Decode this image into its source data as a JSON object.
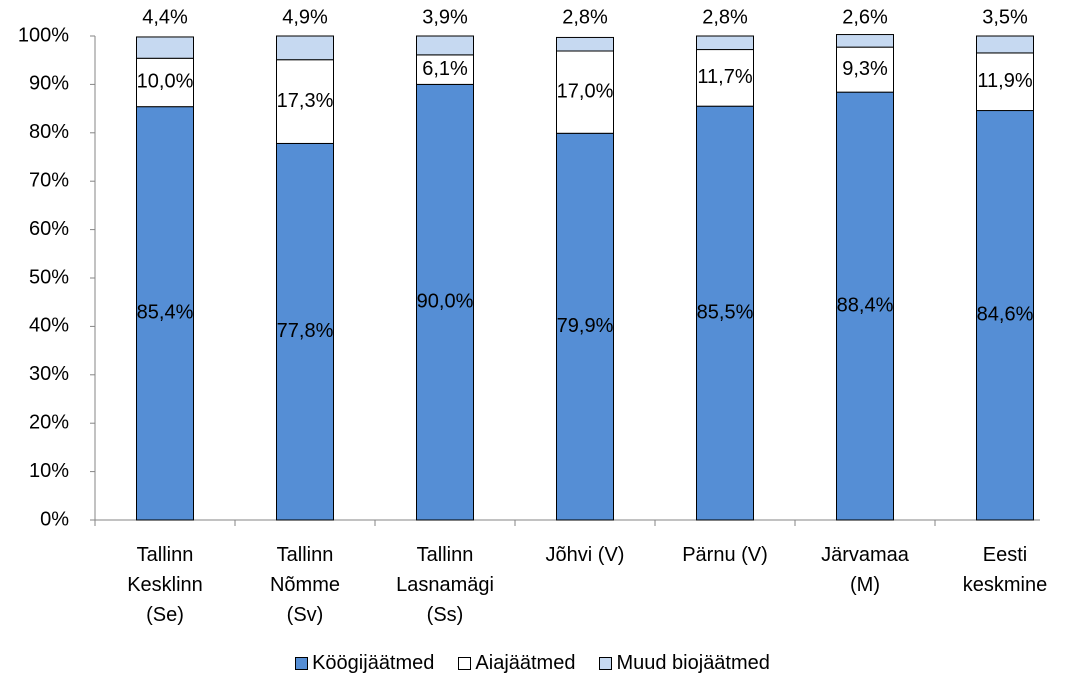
{
  "chart_data": {
    "type": "stacked_bar",
    "categories": [
      "Tallinn\nKesklinn\n(Se)",
      "Tallinn\nNõmme\n(Sv)",
      "Tallinn\nLasnamägi\n(Ss)",
      "Jõhvi (V)",
      "Pärnu (V)",
      "Järvamaa\n(M)",
      "Eesti\nkeskmine"
    ],
    "series": [
      {
        "name": "Köögijäätmed",
        "color": "#558ed5",
        "values": [
          85.4,
          77.8,
          90.0,
          79.9,
          85.5,
          88.4,
          84.6
        ],
        "value_labels": [
          "85,4%",
          "77,8%",
          "90,0%",
          "79,9%",
          "85,5%",
          "88,4%",
          "84,6%"
        ]
      },
      {
        "name": "Aiajäätmed",
        "color": "#ffffff",
        "values": [
          10.0,
          17.3,
          6.1,
          17.0,
          11.7,
          9.3,
          11.9
        ],
        "value_labels": [
          "10,0%",
          "17,3%",
          "6,1%",
          "17,0%",
          "11,7%",
          "9,3%",
          "11,9%"
        ]
      },
      {
        "name": "Muud biojäätmed",
        "color": "#c6d9f1",
        "values": [
          4.4,
          4.9,
          3.9,
          2.8,
          2.8,
          2.6,
          3.5
        ],
        "value_labels": [
          "4,4%",
          "4,9%",
          "3,9%",
          "2,8%",
          "2,8%",
          "2,6%",
          "3,5%"
        ]
      }
    ],
    "ylim": [
      0,
      100
    ],
    "yticks": [
      {
        "value": 0,
        "label": "0%"
      },
      {
        "value": 10,
        "label": "10%"
      },
      {
        "value": 20,
        "label": "20%"
      },
      {
        "value": 30,
        "label": "30%"
      },
      {
        "value": 40,
        "label": "40%"
      },
      {
        "value": 50,
        "label": "50%"
      },
      {
        "value": 60,
        "label": "60%"
      },
      {
        "value": 70,
        "label": "70%"
      },
      {
        "value": 80,
        "label": "80%"
      },
      {
        "value": 90,
        "label": "90%"
      },
      {
        "value": 100,
        "label": "100%"
      }
    ],
    "legend": "bottom"
  }
}
